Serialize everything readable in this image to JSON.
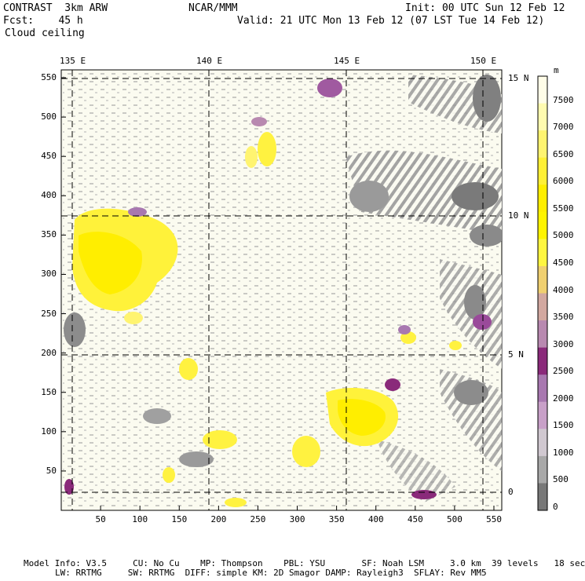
{
  "header": {
    "model": "CONTRAST  3km ARW",
    "org": "NCAR/MMM",
    "init": "Init: 00 UTC Sun 12 Feb 12",
    "fcst": "Fcst:    45 h",
    "valid": "Valid: 21 UTC Mon 13 Feb 12 (07 LST Tue 14 Feb 12)",
    "field": "Cloud ceiling"
  },
  "axes": {
    "x_ticks": [
      "50",
      "100",
      "150",
      "200",
      "250",
      "300",
      "350",
      "400",
      "450",
      "500",
      "550"
    ],
    "y_ticks": [
      "550",
      "500",
      "450",
      "400",
      "350",
      "300",
      "250",
      "200",
      "150",
      "100",
      "50"
    ],
    "lon_labels": [
      "135 E",
      "140 E",
      "145 E",
      "150 E"
    ],
    "lat_labels": [
      "15 N",
      "10 N",
      "5 N",
      "0"
    ]
  },
  "colorbar": {
    "unit": "m",
    "levels": [
      "7500",
      "7000",
      "6500",
      "6000",
      "5500",
      "5000",
      "4500",
      "4000",
      "3500",
      "3000",
      "2500",
      "2000",
      "1500",
      "1000",
      "500",
      "0"
    ],
    "colors": [
      "#fffde8",
      "#fffbb0",
      "#fff470",
      "#fff036",
      "#ffee00",
      "#fff400",
      "#fff640",
      "#f0d070",
      "#d2a8a0",
      "#b889b0",
      "#8a2a7a",
      "#a878b0",
      "#c8a0c8",
      "#d0c8d0",
      "#a8a8a8",
      "#787878"
    ]
  },
  "footer": {
    "line1": "Model Info: V3.5     CU: No Cu    MP: Thompson    PBL: YSU       SF: Noah LSM     3.0 km  39 levels   18 sec",
    "line2": "LW: RRTMG     SW: RRTMG  DIFF: simple KM: 2D Smagor DAMP: Rayleigh3  SFLAY: Rev MM5"
  }
}
